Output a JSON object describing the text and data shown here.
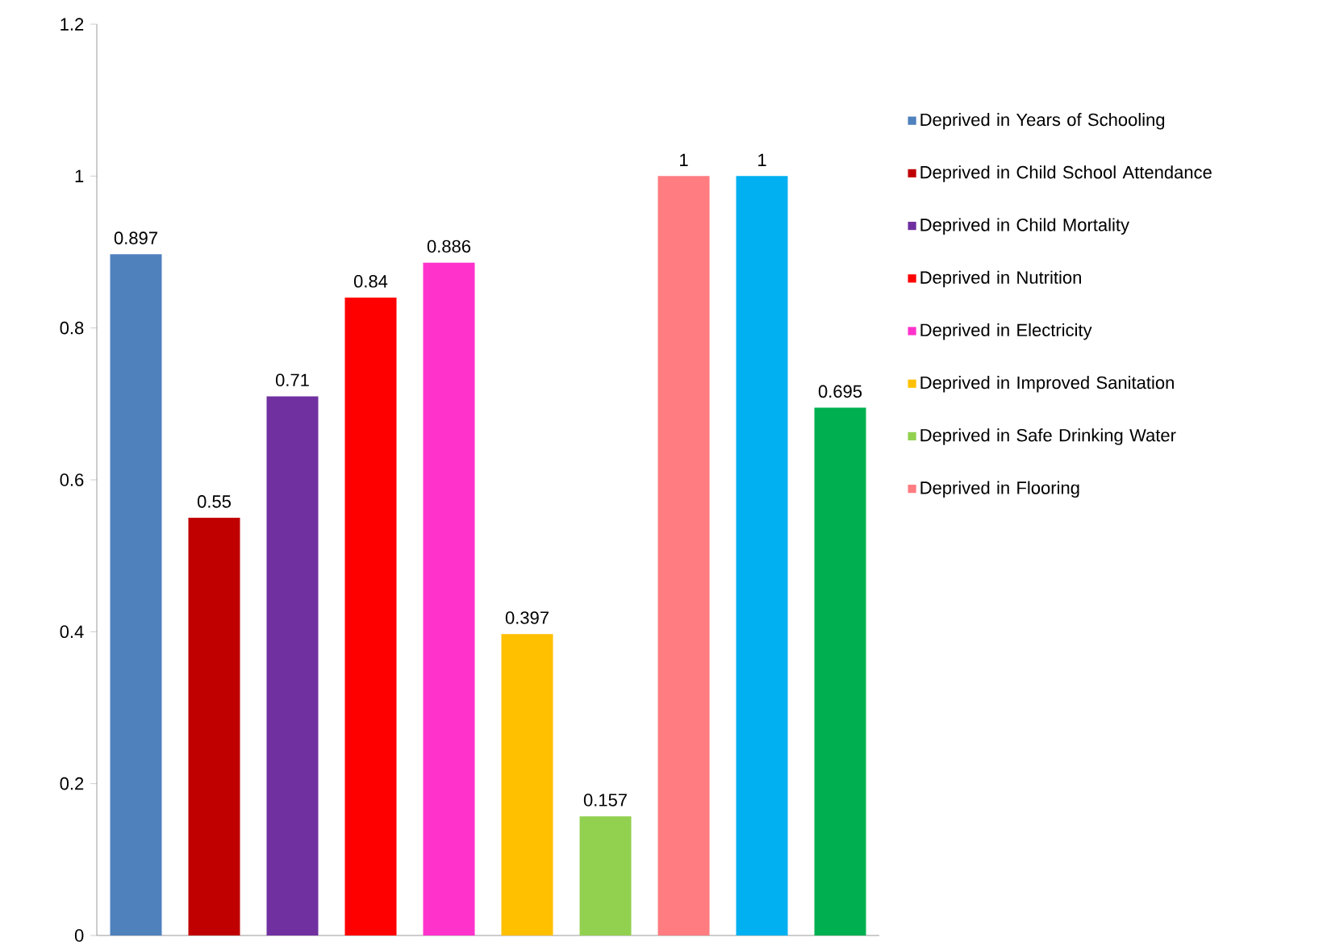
{
  "chart_data": {
    "type": "bar",
    "categories": [
      null,
      null,
      null,
      null,
      null,
      null,
      null,
      null,
      null,
      null
    ],
    "series": [
      {
        "name": "Deprived in Years of Schooling",
        "color": "#4f81bd",
        "values": [
          0.897,
          null,
          null,
          null,
          null,
          null,
          null,
          null,
          null,
          null
        ]
      },
      {
        "name": "Deprived in Child School Attendance",
        "color": "#c00000",
        "values": [
          null,
          0.55,
          null,
          null,
          null,
          null,
          null,
          null,
          null,
          null
        ]
      },
      {
        "name": "Deprived in Child Mortality",
        "color": "#7030a0",
        "values": [
          null,
          null,
          0.71,
          null,
          null,
          null,
          null,
          null,
          null,
          null
        ]
      },
      {
        "name": "Deprived in Nutrition",
        "color": "#ff0000",
        "values": [
          null,
          null,
          null,
          0.84,
          null,
          null,
          null,
          null,
          null,
          null
        ]
      },
      {
        "name": "Deprived in Electricity",
        "color": "#ff33cc",
        "values": [
          null,
          null,
          null,
          null,
          0.886,
          null,
          null,
          null,
          null,
          null
        ]
      },
      {
        "name": "Deprived in Improved Sanitation",
        "color": "#ffc000",
        "values": [
          null,
          null,
          null,
          null,
          null,
          0.397,
          null,
          null,
          null,
          null
        ]
      },
      {
        "name": "Deprived in Safe Drinking Water",
        "color": "#92d050",
        "values": [
          null,
          null,
          null,
          null,
          null,
          null,
          0.157,
          null,
          null,
          null
        ]
      },
      {
        "name": "Deprived in Flooring",
        "color": "#ff7c80",
        "values": [
          null,
          null,
          null,
          null,
          null,
          null,
          null,
          1,
          null,
          null
        ]
      },
      {
        "color": "#00b0f0",
        "values": [
          null,
          null,
          null,
          null,
          null,
          null,
          null,
          null,
          1,
          null
        ]
      },
      {
        "color": "#00b050",
        "values": [
          null,
          null,
          null,
          null,
          null,
          null,
          null,
          null,
          null,
          0.695
        ]
      }
    ],
    "ylim": [
      0,
      1.2
    ],
    "yticks": [
      0,
      0.2,
      0.4,
      0.6,
      0.8,
      1,
      1.2
    ],
    "grid": false,
    "legend": "right",
    "data_labels": true,
    "tick_labels": "y"
  }
}
